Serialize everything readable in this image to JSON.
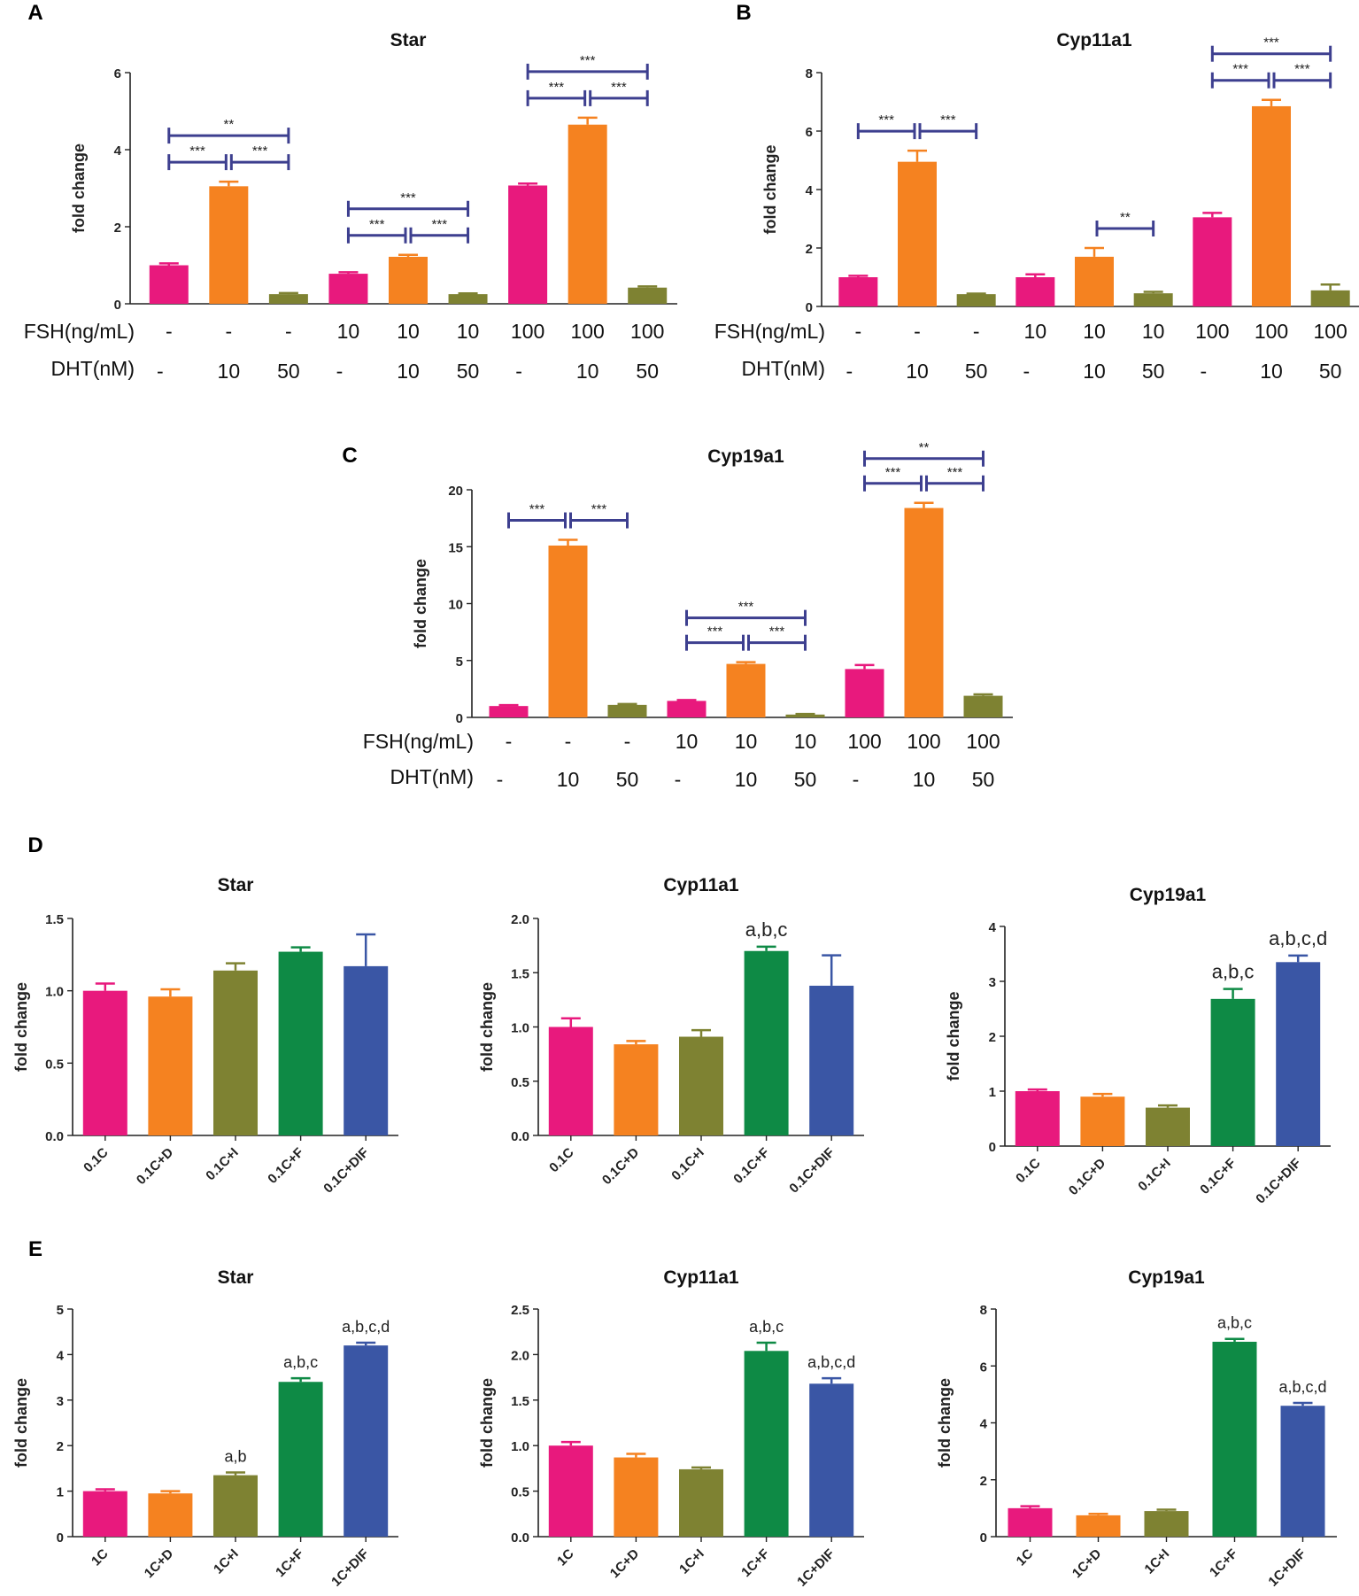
{
  "colors": {
    "pink": "#e8197d",
    "orange": "#f58220",
    "olive": "#7e8232",
    "green": "#0e8a45",
    "blue": "#3a56a5",
    "bracket": "#3d3f8f",
    "axis": "#222222"
  },
  "axis_label": "fold change",
  "row_labels": {
    "fsh": "FSH(ng/mL)",
    "dht": "DHT(nM)"
  },
  "chart_data": [
    {
      "panel": "A",
      "type": "bar",
      "title": "Star",
      "ylabel": "fold change",
      "ylim": [
        0,
        6
      ],
      "yticks": [
        "0",
        "2",
        "4",
        "6"
      ],
      "fsh": [
        "-",
        "-",
        "-",
        "10",
        "10",
        "10",
        "100",
        "100",
        "100"
      ],
      "dht": [
        "-",
        "10",
        "50",
        "-",
        "10",
        "50",
        "-",
        "10",
        "50"
      ],
      "values": [
        1.0,
        3.05,
        0.25,
        0.78,
        1.22,
        0.25,
        3.07,
        4.65,
        0.42
      ],
      "errors": [
        0.05,
        0.12,
        0.03,
        0.04,
        0.05,
        0.02,
        0.05,
        0.18,
        0.03
      ],
      "bar_colors": [
        "pink",
        "orange",
        "olive",
        "pink",
        "orange",
        "olive",
        "pink",
        "orange",
        "olive"
      ],
      "brackets": [
        {
          "from": 0,
          "to": 1,
          "label": "***",
          "level": 0
        },
        {
          "from": 1,
          "to": 2,
          "label": "***",
          "level": 0
        },
        {
          "from": 0,
          "to": 2,
          "label": "**",
          "level": 1
        },
        {
          "from": 3,
          "to": 4,
          "label": "***",
          "level": 0
        },
        {
          "from": 4,
          "to": 5,
          "label": "***",
          "level": 0
        },
        {
          "from": 3,
          "to": 5,
          "label": "***",
          "level": 1
        },
        {
          "from": 6,
          "to": 7,
          "label": "***",
          "level": 0
        },
        {
          "from": 7,
          "to": 8,
          "label": "***",
          "level": 0
        },
        {
          "from": 6,
          "to": 8,
          "label": "***",
          "level": 1
        }
      ]
    },
    {
      "panel": "B",
      "type": "bar",
      "title": "Cyp11a1",
      "ylabel": "fold change",
      "ylim": [
        0,
        8
      ],
      "yticks": [
        "0",
        "2",
        "4",
        "6",
        "8"
      ],
      "fsh": [
        "-",
        "-",
        "-",
        "10",
        "10",
        "10",
        "100",
        "100",
        "100"
      ],
      "dht": [
        "-",
        "10",
        "50",
        "-",
        "10",
        "50",
        "-",
        "10",
        "50"
      ],
      "values": [
        1.0,
        4.95,
        0.42,
        1.0,
        1.7,
        0.45,
        3.05,
        6.85,
        0.55
      ],
      "errors": [
        0.05,
        0.38,
        0.02,
        0.1,
        0.3,
        0.05,
        0.15,
        0.22,
        0.2
      ],
      "bar_colors": [
        "pink",
        "orange",
        "olive",
        "pink",
        "orange",
        "olive",
        "pink",
        "orange",
        "olive"
      ],
      "brackets": [
        {
          "from": 0,
          "to": 1,
          "label": "***",
          "level": 0
        },
        {
          "from": 1,
          "to": 2,
          "label": "***",
          "level": 0
        },
        {
          "from": 4,
          "to": 5,
          "label": "**",
          "level": 0
        },
        {
          "from": 6,
          "to": 7,
          "label": "***",
          "level": 0
        },
        {
          "from": 7,
          "to": 8,
          "label": "***",
          "level": 0
        },
        {
          "from": 6,
          "to": 8,
          "label": "***",
          "level": 1
        }
      ]
    },
    {
      "panel": "C",
      "type": "bar",
      "title": "Cyp19a1",
      "ylabel": "fold change",
      "ylim": [
        0,
        20
      ],
      "yticks": [
        "0",
        "5",
        "10",
        "15",
        "20"
      ],
      "fsh": [
        "-",
        "-",
        "-",
        "10",
        "10",
        "10",
        "100",
        "100",
        "100"
      ],
      "dht": [
        "-",
        "10",
        "50",
        "-",
        "10",
        "50",
        "-",
        "10",
        "50"
      ],
      "values": [
        1.0,
        15.1,
        1.1,
        1.45,
        4.7,
        0.25,
        4.25,
        18.4,
        1.9
      ],
      "errors": [
        0.08,
        0.5,
        0.08,
        0.08,
        0.15,
        0.05,
        0.35,
        0.45,
        0.12
      ],
      "bar_colors": [
        "pink",
        "orange",
        "olive",
        "pink",
        "orange",
        "olive",
        "pink",
        "orange",
        "olive"
      ],
      "brackets": [
        {
          "from": 0,
          "to": 1,
          "label": "***",
          "level": 0
        },
        {
          "from": 1,
          "to": 2,
          "label": "***",
          "level": 0
        },
        {
          "from": 3,
          "to": 4,
          "label": "***",
          "level": 0
        },
        {
          "from": 4,
          "to": 5,
          "label": "***",
          "level": 0
        },
        {
          "from": 3,
          "to": 5,
          "label": "***",
          "level": 1
        },
        {
          "from": 6,
          "to": 7,
          "label": "***",
          "level": 0
        },
        {
          "from": 7,
          "to": 8,
          "label": "***",
          "level": 0
        },
        {
          "from": 6,
          "to": 8,
          "label": "**",
          "level": 1
        }
      ]
    },
    {
      "panel": "D",
      "type": "bar",
      "title": "Star",
      "ylabel": "fold change",
      "ylim": [
        0,
        1.5
      ],
      "yticks": [
        "0.0",
        "0.5",
        "1.0",
        "1.5"
      ],
      "categories": [
        "0.1C",
        "0.1C+D",
        "0.1C+I",
        "0.1C+F",
        "0.1C+DIF"
      ],
      "values": [
        1.0,
        0.96,
        1.14,
        1.27,
        1.17
      ],
      "errors": [
        0.05,
        0.05,
        0.05,
        0.03,
        0.22
      ],
      "bar_colors": [
        "pink",
        "orange",
        "olive",
        "green",
        "blue"
      ],
      "annotations": [
        "",
        "",
        "",
        "",
        ""
      ]
    },
    {
      "panel": "D",
      "type": "bar",
      "title": "Cyp11a1",
      "ylabel": "fold change",
      "ylim": [
        0,
        2.0
      ],
      "yticks": [
        "0.0",
        "0.5",
        "1.0",
        "1.5",
        "2.0"
      ],
      "categories": [
        "0.1C",
        "0.1C+D",
        "0.1C+I",
        "0.1C+F",
        "0.1C+DIF"
      ],
      "values": [
        1.0,
        0.84,
        0.91,
        1.7,
        1.38
      ],
      "errors": [
        0.08,
        0.03,
        0.06,
        0.04,
        0.28
      ],
      "bar_colors": [
        "pink",
        "orange",
        "olive",
        "green",
        "blue"
      ],
      "annotations": [
        "",
        "",
        "",
        "a,b,c",
        ""
      ]
    },
    {
      "panel": "D",
      "type": "bar",
      "title": "Cyp19a1",
      "ylabel": "fold change",
      "ylim": [
        0,
        4
      ],
      "yticks": [
        "0",
        "1",
        "2",
        "3",
        "4"
      ],
      "categories": [
        "0.1C",
        "0.1C+D",
        "0.1C+I",
        "0.1C+F",
        "0.1C+DIF"
      ],
      "values": [
        1.0,
        0.9,
        0.7,
        2.68,
        3.35
      ],
      "errors": [
        0.03,
        0.05,
        0.04,
        0.18,
        0.12
      ],
      "bar_colors": [
        "pink",
        "orange",
        "olive",
        "green",
        "blue"
      ],
      "annotations": [
        "",
        "",
        "",
        "a,b,c",
        "a,b,c,d"
      ]
    },
    {
      "panel": "E",
      "type": "bar",
      "title": "Star",
      "ylabel": "fold change",
      "ylim": [
        0,
        5
      ],
      "yticks": [
        "0",
        "1",
        "2",
        "3",
        "4",
        "5"
      ],
      "categories": [
        "1C",
        "1C+D",
        "1C+I",
        "1C+F",
        "1C+DIF"
      ],
      "values": [
        1.0,
        0.95,
        1.35,
        3.4,
        4.2
      ],
      "errors": [
        0.04,
        0.05,
        0.06,
        0.08,
        0.06
      ],
      "bar_colors": [
        "pink",
        "orange",
        "olive",
        "green",
        "blue"
      ],
      "annotations": [
        "",
        "",
        "a,b",
        "a,b,c",
        "a,b,c,d"
      ]
    },
    {
      "panel": "E",
      "type": "bar",
      "title": "Cyp11a1",
      "ylabel": "fold change",
      "ylim": [
        0,
        2.5
      ],
      "yticks": [
        "0.0",
        "0.5",
        "1.0",
        "1.5",
        "2.0",
        "2.5"
      ],
      "categories": [
        "1C",
        "1C+D",
        "1C+I",
        "1C+F",
        "1C+DIF"
      ],
      "values": [
        1.0,
        0.87,
        0.74,
        2.04,
        1.68
      ],
      "errors": [
        0.04,
        0.04,
        0.02,
        0.09,
        0.06
      ],
      "bar_colors": [
        "pink",
        "orange",
        "olive",
        "green",
        "blue"
      ],
      "annotations": [
        "",
        "",
        "",
        "a,b,c",
        "a,b,c,d"
      ]
    },
    {
      "panel": "E",
      "type": "bar",
      "title": "Cyp19a1",
      "ylabel": "fold change",
      "ylim": [
        0,
        8
      ],
      "yticks": [
        "0",
        "2",
        "4",
        "6",
        "8"
      ],
      "categories": [
        "1C",
        "1C+D",
        "1C+I",
        "1C+F",
        "1C+DIF"
      ],
      "values": [
        1.0,
        0.75,
        0.9,
        6.85,
        4.6
      ],
      "errors": [
        0.07,
        0.05,
        0.05,
        0.1,
        0.1
      ],
      "bar_colors": [
        "pink",
        "orange",
        "olive",
        "green",
        "blue"
      ],
      "annotations": [
        "",
        "",
        "",
        "a,b,c",
        "a,b,c,d"
      ]
    }
  ]
}
